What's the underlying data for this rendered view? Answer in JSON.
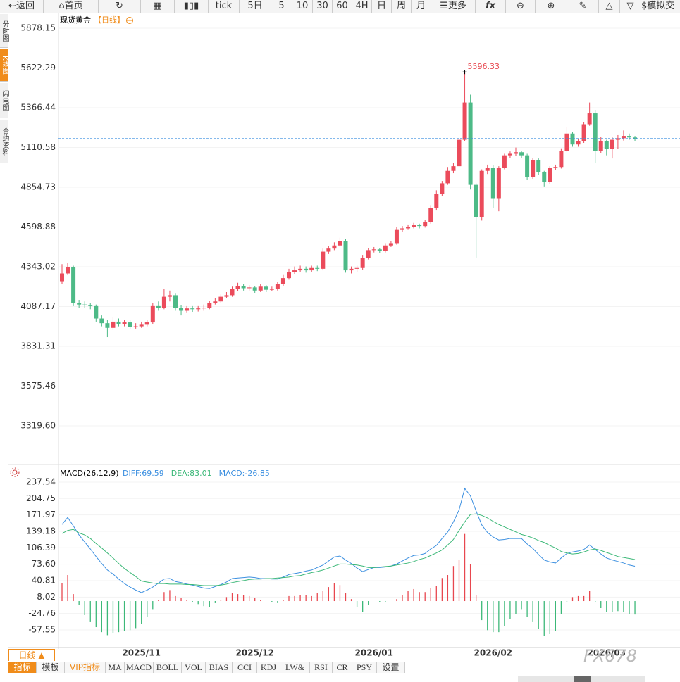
{
  "toolbar": [
    "返回",
    "首页",
    "tick",
    "5日",
    "5",
    "10",
    "30",
    "60",
    "4H",
    "日",
    "周",
    "月",
    "更多",
    "模拟交"
  ],
  "side_tabs": [
    "分时图",
    "K线图",
    "闪电图",
    "合约资料"
  ],
  "period_tab": "日线",
  "indicator_tabs": [
    "指标",
    "模板",
    "VIP指标",
    "MA",
    "MACD",
    "BOLL",
    "VOL",
    "BIAS",
    "CCI",
    "KDJ",
    "LW&",
    "RSI",
    "CR",
    "PSY",
    "设置"
  ],
  "watermark": "FX678",
  "chart_data": [
    {
      "type": "candlestick",
      "title": "现货黄金",
      "subtitle": "【日线】",
      "up_color": "#eb4b5b",
      "down_color": "#4dba87",
      "grid": true,
      "categories": [
        null,
        null,
        null,
        null,
        null,
        null,
        null,
        null,
        null,
        null,
        null,
        null,
        null,
        null,
        "2025/11",
        null,
        null,
        null,
        null,
        null,
        null,
        null,
        null,
        null,
        null,
        null,
        null,
        null,
        null,
        null,
        null,
        null,
        null,
        null,
        "2025/12",
        null,
        null,
        null,
        null,
        null,
        null,
        null,
        null,
        null,
        null,
        null,
        null,
        null,
        null,
        null,
        null,
        null,
        null,
        null,
        null,
        "2026/01",
        null,
        null,
        null,
        null,
        null,
        null,
        null,
        null,
        null,
        null,
        null,
        null,
        null,
        null,
        null,
        null,
        null,
        null,
        null,
        null,
        "2026/02",
        null,
        null,
        null,
        null,
        null,
        null,
        null,
        null,
        null,
        null,
        null,
        null,
        null,
        null,
        null,
        null,
        null,
        null,
        null,
        "2026/03",
        null,
        null,
        null,
        null,
        null
      ],
      "open": [
        4250,
        4300,
        4340,
        4110,
        4100,
        4095,
        4090,
        4010,
        3980,
        3950,
        3990,
        3975,
        3985,
        3955,
        3960,
        3970,
        3985,
        4090,
        4080,
        4150,
        4160,
        4080,
        4060,
        4075,
        4070,
        4075,
        4080,
        4110,
        4120,
        4150,
        4160,
        4200,
        4220,
        4205,
        4210,
        4190,
        4215,
        4195,
        4200,
        4230,
        4270,
        4310,
        4320,
        4330,
        4320,
        4335,
        4330,
        4440,
        4460,
        4480,
        4510,
        4320,
        4330,
        4335,
        4400,
        4450,
        4455,
        4445,
        4480,
        4495,
        4580,
        4590,
        4600,
        4610,
        4605,
        4630,
        4720,
        4810,
        4880,
        4960,
        4990,
        5160,
        5400,
        4870,
        4660,
        4960,
        4980,
        4780,
        4980,
        5060,
        5070,
        5080,
        5060,
        4920,
        5030,
        4950,
        4890,
        4980,
        4985,
        5090,
        5200,
        5130,
        5150,
        5260,
        5330,
        5090,
        5150,
        5100,
        5160,
        5170,
        5185,
        5175
      ],
      "high": [
        4360,
        4370,
        4350,
        4130,
        4120,
        4110,
        4100,
        4030,
        4000,
        4020,
        4010,
        4000,
        4000,
        3980,
        3990,
        4000,
        4110,
        4120,
        4200,
        4190,
        4170,
        4095,
        4090,
        4090,
        4090,
        4100,
        4125,
        4140,
        4165,
        4180,
        4215,
        4240,
        4230,
        4225,
        4220,
        4230,
        4225,
        4215,
        4245,
        4290,
        4330,
        4345,
        4350,
        4345,
        4350,
        4350,
        4460,
        4475,
        4500,
        4530,
        4520,
        4345,
        4350,
        4415,
        4465,
        4470,
        4465,
        4495,
        4510,
        4600,
        4605,
        4615,
        4625,
        4620,
        4645,
        4740,
        4835,
        4895,
        4985,
        5010,
        5170,
        5596.33,
        5450,
        4880,
        4970,
        5000,
        4995,
        4990,
        5070,
        5085,
        5110,
        5090,
        5070,
        5045,
        5040,
        4960,
        4990,
        5000,
        5105,
        5240,
        5210,
        5165,
        5275,
        5400,
        5350,
        5180,
        5160,
        5180,
        5190,
        5220,
        5200,
        5185
      ],
      "low": [
        4230,
        4290,
        4090,
        4080,
        4080,
        4070,
        3990,
        3960,
        3890,
        3935,
        3960,
        3960,
        3940,
        3945,
        3950,
        3960,
        3975,
        4060,
        4070,
        4120,
        4060,
        4030,
        4045,
        4050,
        4055,
        4060,
        4070,
        4100,
        4110,
        4140,
        4150,
        4185,
        4190,
        4190,
        4175,
        4180,
        4180,
        4185,
        4190,
        4220,
        4260,
        4295,
        4310,
        4305,
        4310,
        4315,
        4320,
        4425,
        4450,
        4470,
        4305,
        4300,
        4310,
        4325,
        4390,
        4435,
        4430,
        4435,
        4470,
        4485,
        4565,
        4580,
        4590,
        4590,
        4595,
        4620,
        4705,
        4800,
        4870,
        4945,
        4980,
        5150,
        4840,
        4402,
        4640,
        4940,
        4720,
        4700,
        4970,
        5045,
        5055,
        5045,
        4900,
        4905,
        4935,
        4860,
        4875,
        4965,
        4975,
        5080,
        5115,
        5115,
        5140,
        5250,
        5010,
        5075,
        5060,
        5040,
        5100,
        5155,
        5160,
        5150
      ],
      "close": [
        4300,
        4340,
        4110,
        4100,
        4095,
        4090,
        4010,
        3980,
        3950,
        3990,
        3975,
        3985,
        3955,
        3960,
        3970,
        3985,
        4090,
        4080,
        4150,
        4160,
        4080,
        4060,
        4075,
        4070,
        4075,
        4080,
        4110,
        4120,
        4150,
        4160,
        4200,
        4220,
        4205,
        4210,
        4190,
        4215,
        4195,
        4200,
        4230,
        4270,
        4310,
        4320,
        4330,
        4320,
        4335,
        4330,
        4440,
        4460,
        4480,
        4510,
        4320,
        4330,
        4335,
        4400,
        4450,
        4455,
        4445,
        4480,
        4495,
        4580,
        4590,
        4600,
        4610,
        4605,
        4630,
        4720,
        4810,
        4880,
        4960,
        4990,
        5160,
        5400,
        4870,
        4660,
        4960,
        4980,
        4780,
        4980,
        5060,
        5070,
        5080,
        5060,
        4920,
        5030,
        4950,
        4890,
        4980,
        4985,
        5090,
        5200,
        5130,
        5150,
        5260,
        5330,
        5090,
        5150,
        5100,
        5160,
        5170,
        5185,
        5175,
        5168
      ],
      "ylim": [
        3070.5,
        5968.7
      ],
      "yticks": [
        5878.15,
        5622.29,
        5366.44,
        5110.58,
        4854.73,
        4598.88,
        4343.02,
        4087.17,
        3831.31,
        3575.46,
        {
          "value": 3319.6,
          "label": "3319.60"
        }
      ]
    },
    {
      "type": "macd",
      "title": "MACD(26,12,9)",
      "legend": [
        {
          "text": "DIFF:69.59",
          "color": "#3b8fe0"
        },
        {
          "text": "DEA:83.01",
          "color": "#3cb878"
        },
        {
          "text": "MACD:-26.85",
          "color": "#3b8fe0"
        }
      ],
      "series": [
        {
          "color": "#3b8fe0",
          "values": [
            153,
            167,
            150,
            132,
            118,
            104,
            89,
            75,
            62,
            54,
            44,
            35,
            28,
            22,
            17,
            22,
            28,
            36,
            44,
            45,
            39,
            37,
            34,
            32,
            29,
            26,
            25,
            29,
            33,
            38,
            45,
            46,
            47,
            48,
            47,
            45,
            45,
            44,
            44,
            48,
            53,
            55,
            57,
            60,
            62,
            67,
            72,
            80,
            88,
            90,
            82,
            75,
            66,
            59,
            63,
            67,
            67,
            68,
            70,
            74,
            80,
            86,
            91,
            92,
            95,
            104,
            111,
            125,
            138,
            158,
            182,
            225,
            210,
            180,
            152,
            137,
            128,
            122,
            123,
            125,
            125,
            125,
            114,
            105,
            93,
            82,
            78,
            76,
            86,
            95,
            98,
            100,
            103,
            112,
            103,
            94,
            86,
            82,
            79,
            76,
            72,
            69.59
          ]
        },
        {
          "color": "#3cb878",
          "values": [
            135,
            141,
            143,
            136,
            132,
            125,
            115,
            106,
            96,
            86,
            75,
            65,
            57,
            49,
            40,
            38,
            36,
            35,
            35,
            34,
            34,
            34,
            33,
            33,
            32,
            31,
            31,
            31,
            32,
            34,
            37,
            39,
            41,
            43,
            44,
            44,
            45,
            45,
            46,
            47,
            48,
            50,
            51,
            54,
            57,
            59,
            62,
            66,
            70,
            74,
            74,
            73,
            72,
            70,
            67,
            67,
            68,
            69,
            70,
            72,
            74,
            76,
            79,
            83,
            86,
            91,
            96,
            102,
            112,
            123,
            141,
            158,
            173,
            174,
            171,
            166,
            159,
            153,
            148,
            143,
            138,
            133,
            130,
            126,
            121,
            117,
            111,
            106,
            99,
            96,
            94,
            95,
            98,
            102,
            104,
            101,
            97,
            93,
            89,
            87,
            85,
            83.01
          ]
        }
      ],
      "histogram": [
        36,
        52,
        14,
        -8,
        -28,
        -42,
        -52,
        -62,
        -68,
        -64,
        -62,
        -60,
        -58,
        -54,
        -46,
        -32,
        -16,
        2,
        18,
        22,
        10,
        6,
        2,
        -2,
        -6,
        -10,
        -12,
        -4,
        2,
        8,
        16,
        14,
        12,
        10,
        6,
        2,
        0,
        -2,
        -4,
        2,
        10,
        10,
        12,
        12,
        10,
        16,
        20,
        28,
        36,
        32,
        16,
        4,
        -12,
        -22,
        -8,
        0,
        -2,
        -2,
        0,
        4,
        12,
        20,
        24,
        18,
        18,
        26,
        30,
        46,
        52,
        70,
        82,
        134,
        74,
        12,
        -38,
        -58,
        -62,
        -62,
        -50,
        -36,
        -26,
        -16,
        -32,
        -42,
        -56,
        -70,
        -66,
        -60,
        -26,
        -2,
        8,
        10,
        10,
        20,
        -2,
        -14,
        -22,
        -22,
        -20,
        -22,
        -26,
        -26.85
      ],
      "ylim": [
        -92.7,
        265.6
      ],
      "yticks": [
        237.54,
        204.75,
        171.97,
        139.18,
        106.39,
        {
          "value": 73.6,
          "label": "73.60"
        },
        40.81,
        8.02,
        -24.76,
        -57.55
      ]
    }
  ]
}
